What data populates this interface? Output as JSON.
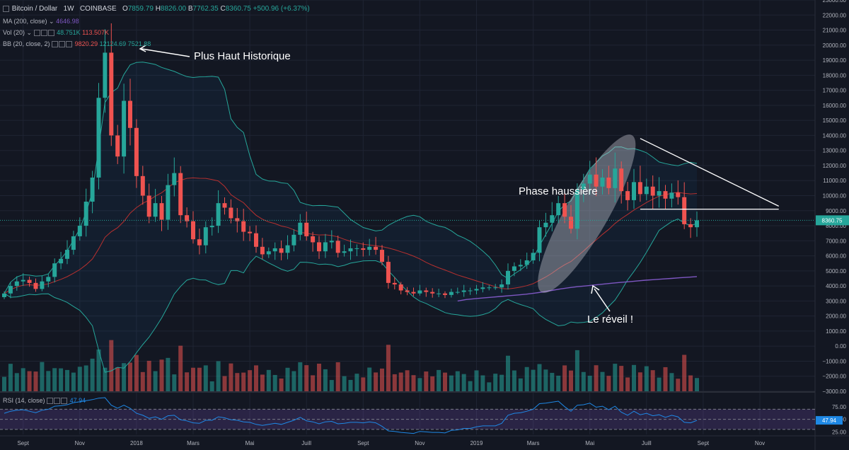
{
  "header": {
    "symbol": "Bitcoin / Dollar",
    "interval": "1W",
    "exchange": "COINBASE",
    "ohlc": {
      "O": "7859.79",
      "H": "8826.00",
      "B": "7762.35",
      "C": "8360.75"
    },
    "change": "+500.96 (+6.37%)"
  },
  "indicators": [
    {
      "label": "MA (200, close)",
      "values": [
        "4646.98"
      ]
    },
    {
      "label": "Vol (20)",
      "values": [
        "48.751K",
        "113.507K"
      ]
    },
    {
      "label": "BB (20, close, 2)",
      "values": [
        "9820.29",
        "12124.69",
        "7521.88"
      ]
    }
  ],
  "rsi": {
    "label": "RSI (14, close)",
    "value": "47.94"
  },
  "last_price_label": "8360.75",
  "annotations": {
    "ath": "Plus Haut Historique",
    "bull": "Phase haussière",
    "wake": "Le réveil !"
  },
  "colors": {
    "up": "#26a69a",
    "down": "#ef5350",
    "ma": "#7e57c2",
    "bb": "#26a69a",
    "bb_mid": "#b7302f",
    "rsi": "#1e88e5"
  },
  "chart_data": {
    "type": "candlestick",
    "x_tick_labels": [
      {
        "i": 3,
        "label": "Sept"
      },
      {
        "i": 12,
        "label": "Nov"
      },
      {
        "i": 21,
        "label": "2018"
      },
      {
        "i": 30,
        "label": "Mars"
      },
      {
        "i": 39,
        "label": "Mai"
      },
      {
        "i": 48,
        "label": "Juill"
      },
      {
        "i": 57,
        "label": "Sept"
      },
      {
        "i": 66,
        "label": "Nov"
      },
      {
        "i": 75,
        "label": "2019"
      },
      {
        "i": 84,
        "label": "Mars"
      },
      {
        "i": 93,
        "label": "Mai"
      },
      {
        "i": 102,
        "label": "Juill"
      },
      {
        "i": 111,
        "label": "Sept"
      },
      {
        "i": 120,
        "label": "Nov"
      }
    ],
    "y_ticks": [
      "23000.00",
      "22000.00",
      "21000.00",
      "20000.00",
      "19000.00",
      "18000.00",
      "17000.00",
      "16000.00",
      "15000.00",
      "14000.00",
      "13000.00",
      "12000.00",
      "11000.00",
      "10000.00",
      "9000.00",
      "8000.00",
      "7000.00",
      "6000.00",
      "5000.00",
      "4000.00",
      "3000.00",
      "2000.00",
      "1000.00",
      "0.00",
      "−1000.00",
      "−2000.00",
      "−3000.00"
    ],
    "y_range": [
      -3000,
      23000
    ],
    "rsi_ticks": [
      "75.00",
      "50.00",
      "25.00"
    ],
    "rsi_range": [
      20,
      100
    ],
    "rsi_band": [
      30,
      70
    ],
    "close": [
      3500,
      4000,
      4300,
      4400,
      4200,
      3800,
      4300,
      4600,
      5500,
      5800,
      6400,
      7300,
      8000,
      9600,
      11200,
      16500,
      19500,
      14000,
      12600,
      16300,
      14500,
      11300,
      10000,
      8600,
      9500,
      8400,
      10700,
      11500,
      8700,
      8300,
      7100,
      6700,
      7900,
      8000,
      9500,
      9200,
      8500,
      8300,
      7600,
      7500,
      6600,
      6100,
      6300,
      6500,
      6200,
      6700,
      7400,
      8200,
      7300,
      6900,
      6300,
      6900,
      7000,
      6200,
      6300,
      6500,
      6500,
      6400,
      6600,
      6400,
      5600,
      4200,
      4100,
      3700,
      3600,
      3500,
      3700,
      3600,
      3500,
      3500,
      3400,
      3600,
      3600,
      3700,
      3700,
      3800,
      3900,
      3900,
      3900,
      4100,
      5000,
      5300,
      5400,
      5700,
      6200,
      7900,
      8200,
      8700,
      9500,
      8600,
      7800,
      10400,
      10800,
      11400,
      10600,
      11200,
      10500,
      11800,
      10300,
      9700,
      10900,
      10100,
      10600,
      10000,
      10300,
      9800,
      10200,
      9900,
      8100,
      7900,
      8360
    ],
    "ma200_visible_from": 72,
    "ma200": [
      3000,
      3100,
      3150,
      3200,
      3250,
      3300,
      3350,
      3400,
      3450,
      3520,
      3600,
      3700,
      3800,
      3880,
      3950,
      4000,
      4060,
      4120,
      4180,
      4230,
      4280,
      4330,
      4380,
      4420,
      4460,
      4500,
      4540,
      4580,
      4620
    ],
    "rsi_values": [
      62,
      66,
      68,
      69,
      66,
      63,
      68,
      70,
      76,
      77,
      79,
      83,
      85,
      87,
      89,
      92,
      93,
      78,
      72,
      78,
      72,
      62,
      58,
      52,
      55,
      50,
      57,
      58,
      49,
      47,
      43,
      42,
      48,
      48,
      55,
      53,
      49,
      48,
      45,
      44,
      40,
      38,
      40,
      42,
      40,
      44,
      48,
      54,
      47,
      45,
      41,
      45,
      46,
      41,
      42,
      44,
      44,
      43,
      45,
      43,
      36,
      27,
      26,
      24,
      23,
      22,
      26,
      25,
      24,
      24,
      23,
      28,
      29,
      32,
      32,
      35,
      37,
      37,
      37,
      42,
      58,
      62,
      63,
      66,
      70,
      81,
      82,
      84,
      86,
      75,
      66,
      78,
      79,
      82,
      74,
      76,
      69,
      76,
      64,
      58,
      66,
      59,
      62,
      57,
      59,
      54,
      58,
      55,
      44,
      43,
      47.94
    ]
  }
}
